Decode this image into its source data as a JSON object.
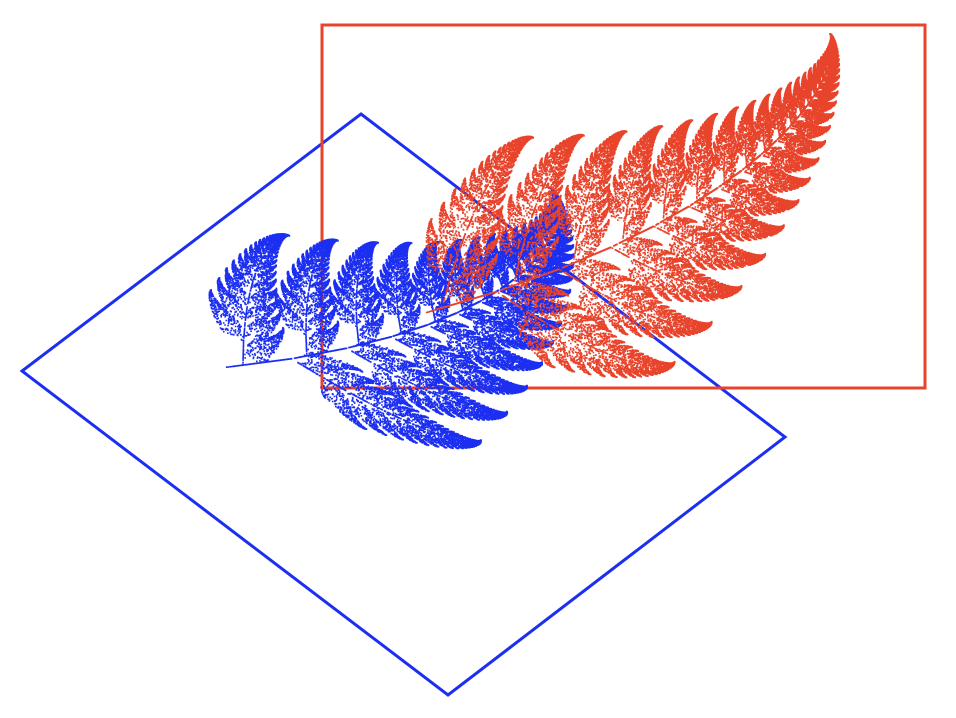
{
  "figure": {
    "background": "#ffffff",
    "shapes": [
      {
        "name": "rectangle-frame",
        "stroke": "#e8432b"
      },
      {
        "name": "diamond-frame",
        "stroke": "#1c2ff0"
      }
    ],
    "fractals": [
      {
        "name": "red-fern",
        "fill": "#e8432b"
      },
      {
        "name": "blue-fern",
        "fill": "#1c2ff0"
      }
    ]
  }
}
